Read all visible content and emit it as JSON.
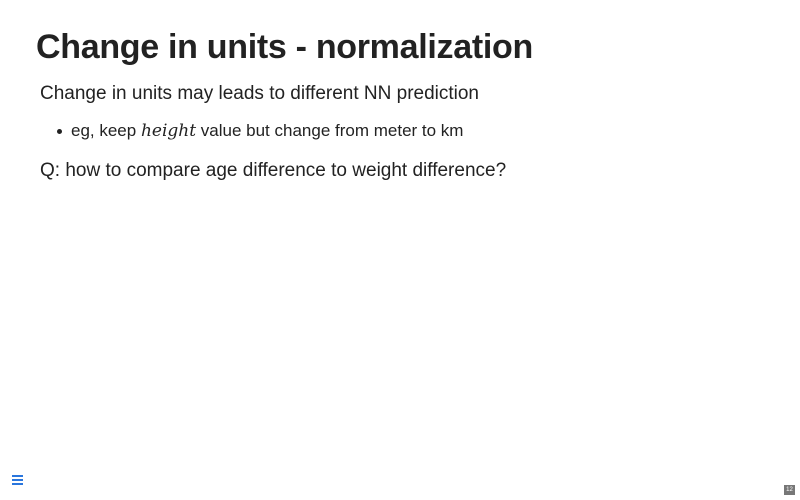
{
  "slide": {
    "title": "Change in units - normalization",
    "paragraph_1": "Change in units may leads to different NN prediction",
    "bullets": [
      {
        "prefix": "eg, keep ",
        "math": "height",
        "suffix": " value but change from meter to km"
      }
    ],
    "paragraph_2": "Q: how to compare age difference to weight difference?"
  },
  "footer": {
    "menu_icon": "hamburger-menu-icon",
    "page_number": "12"
  },
  "colors": {
    "text": "#222222",
    "menu_accent": "#2a76dd",
    "page_badge": "#777777"
  }
}
